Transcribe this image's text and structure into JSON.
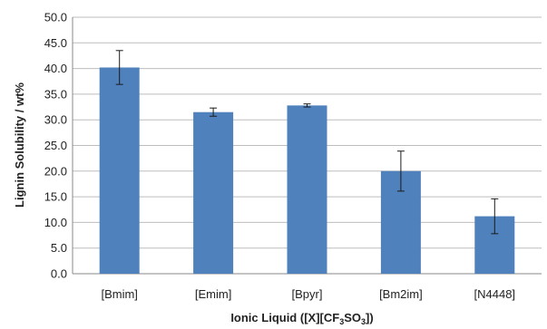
{
  "chart_data": {
    "type": "bar",
    "title": "",
    "xlabel": "Ionic Liquid ([X][CF3SO3])",
    "xlabel_parts": {
      "prefix": "Ionic Liquid ([X][CF",
      "sub1": "3",
      "mid": "SO",
      "sub2": "3",
      "suffix": "])"
    },
    "ylabel": "Lignin Solubility / wt%",
    "categories": [
      "[Bmim]",
      "[Emim]",
      "[Bpyr]",
      "[Bm2im]",
      "[N4448]"
    ],
    "values": [
      40.2,
      31.5,
      32.8,
      20.0,
      11.2
    ],
    "error_bars": [
      3.3,
      0.8,
      0.3,
      3.9,
      3.4
    ],
    "ylim": [
      0,
      50
    ],
    "yticks": [
      "0.0",
      "5.0",
      "10.0",
      "15.0",
      "20.0",
      "25.0",
      "30.0",
      "35.0",
      "40.0",
      "45.0",
      "50.0"
    ],
    "grid": true,
    "legend": "none",
    "bar_color": "#4f81bd"
  }
}
